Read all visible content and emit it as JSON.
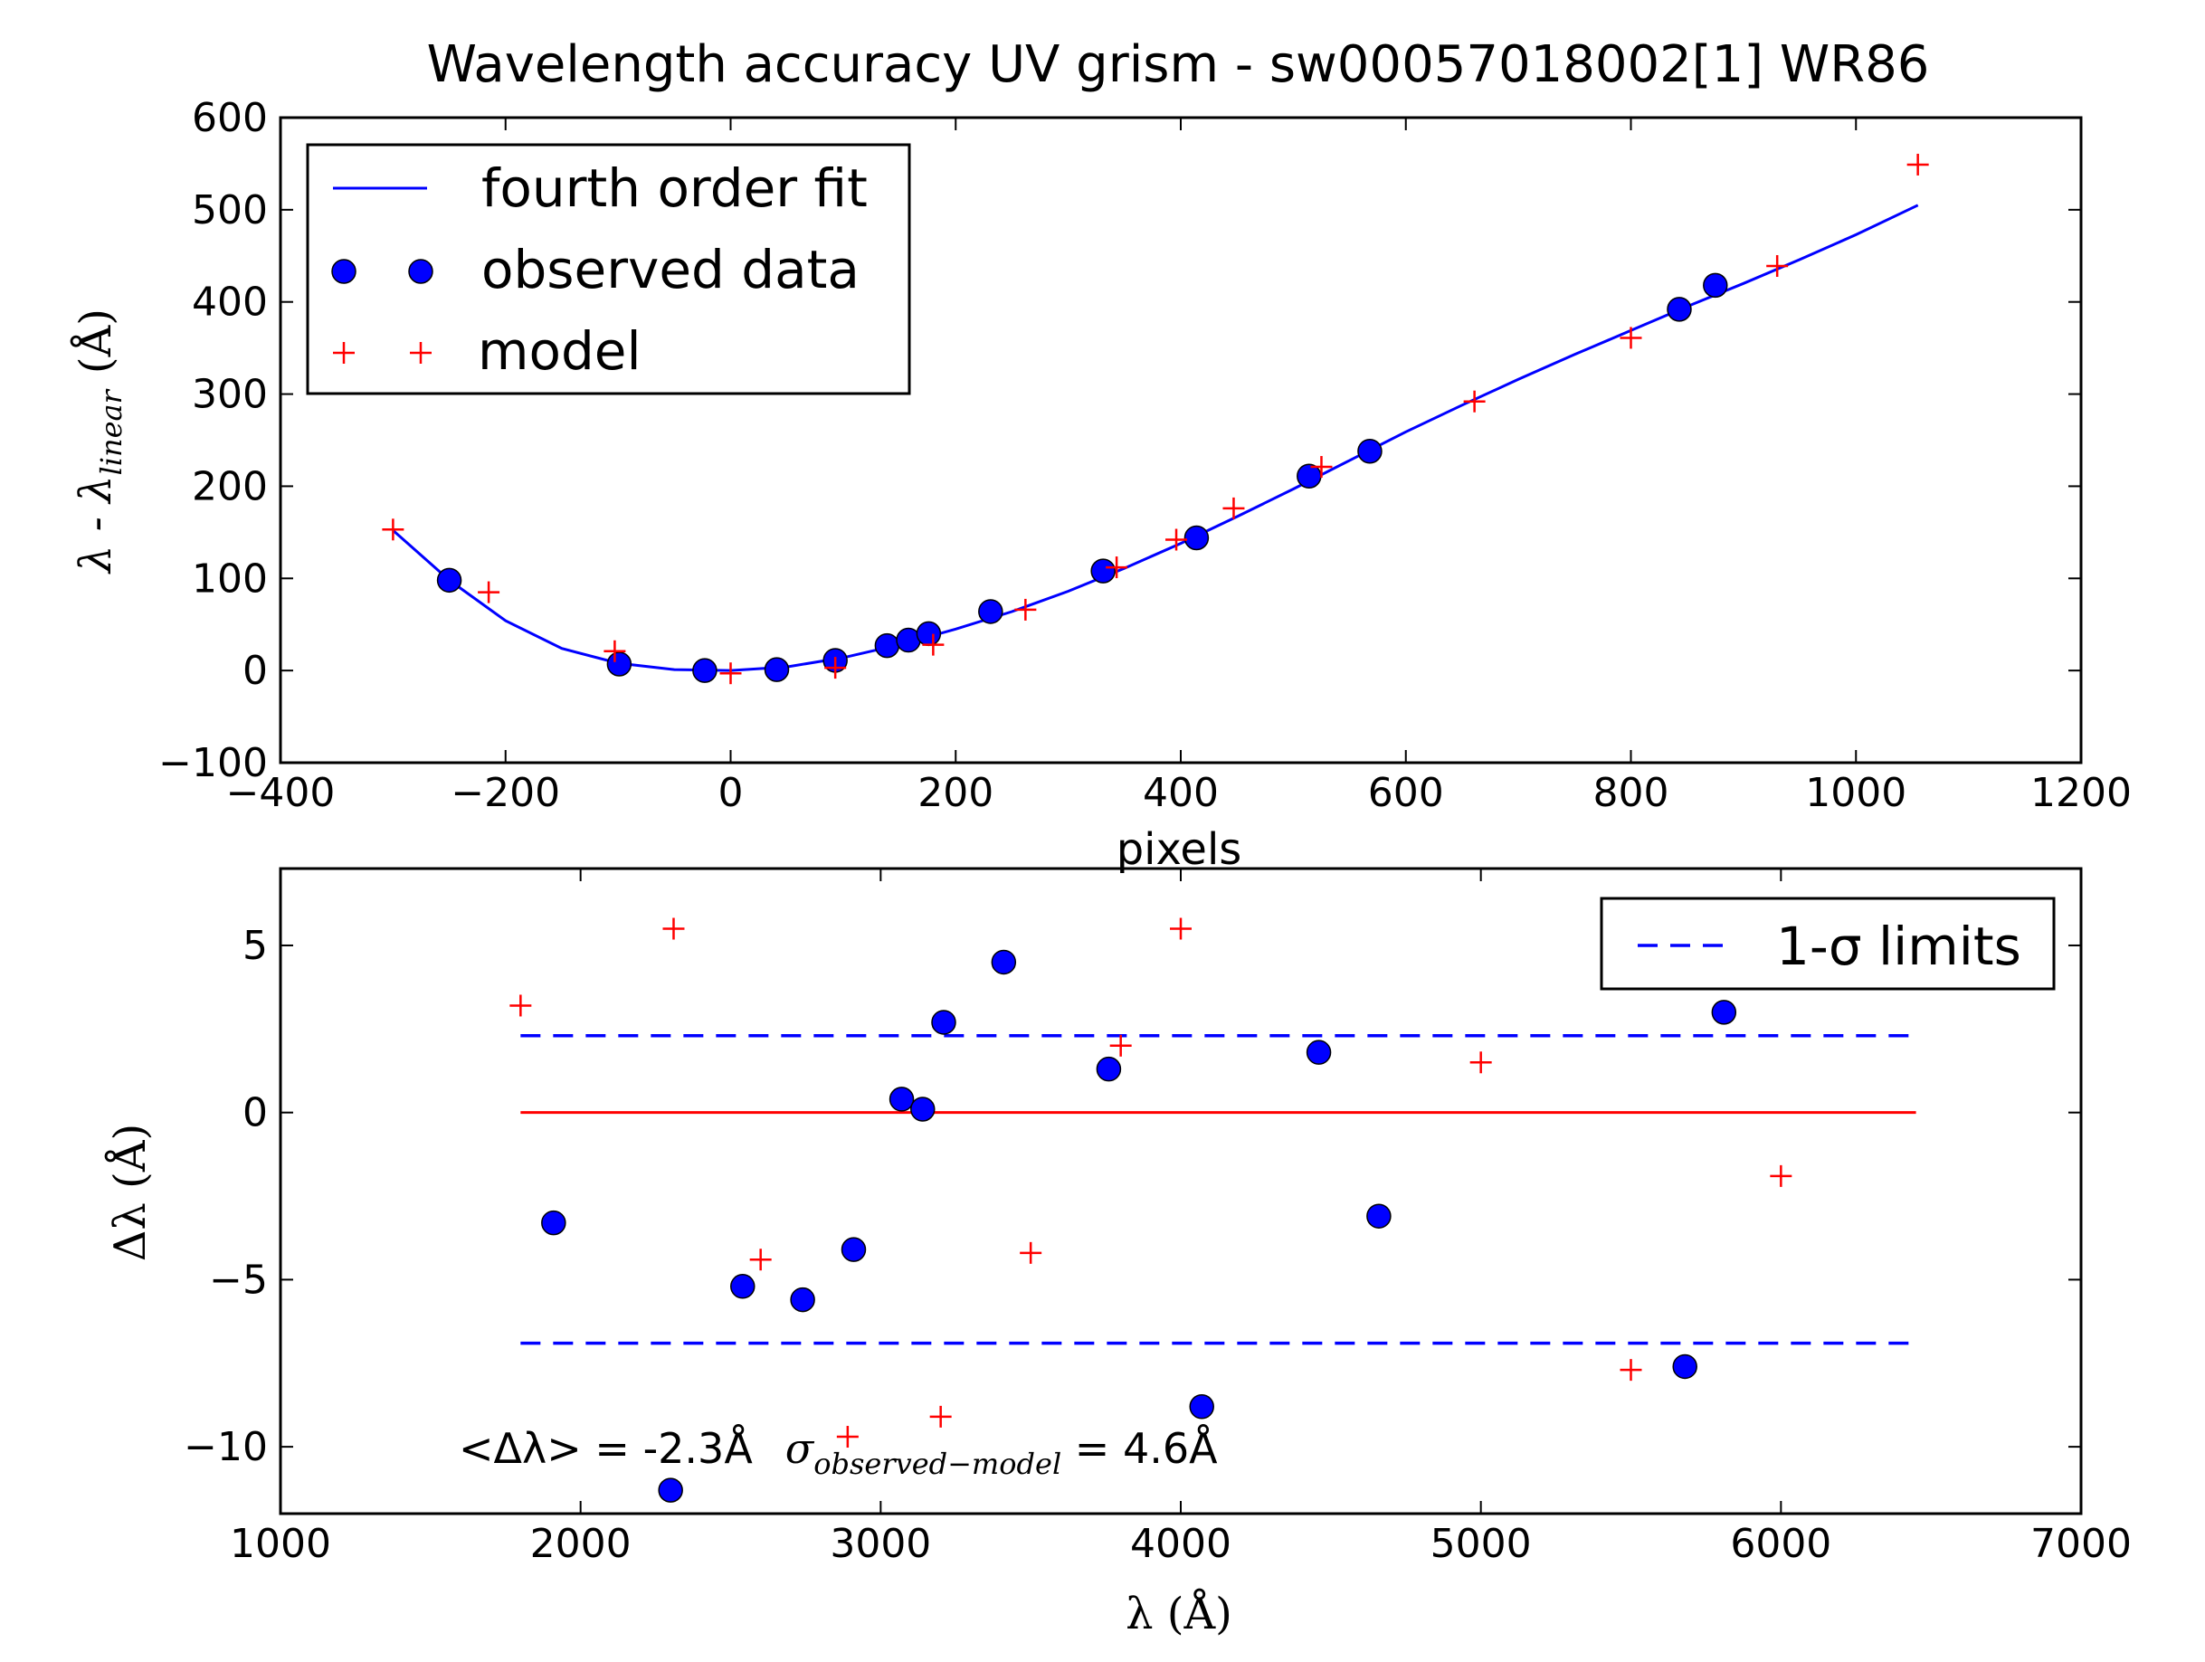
{
  "chart_data": [
    {
      "type": "scatter",
      "title": "Wavelength accuracy UV grism - sw00057018002[1] WR86",
      "xlabel": "pixels",
      "ylabel": "λ - λlinear (Å)",
      "ylabel_parts": {
        "main": "λ - λ",
        "sub": "linear",
        "unit": "(Å)"
      },
      "xlim": [
        -400,
        1200
      ],
      "ylim": [
        -100,
        600
      ],
      "xticks": [
        -400,
        -200,
        0,
        200,
        400,
        600,
        800,
        1000,
        1200
      ],
      "yticks": [
        -100,
        0,
        100,
        200,
        300,
        400,
        500,
        600
      ],
      "xtick_labels": [
        "−400",
        "−200",
        "0",
        "200",
        "400",
        "600",
        "800",
        "1000",
        "1200"
      ],
      "ytick_labels": [
        "−100",
        "0",
        "100",
        "200",
        "300",
        "400",
        "500",
        "600"
      ],
      "legend_position": "upper-left",
      "series": [
        {
          "name": "fourth order fit",
          "kind": "line",
          "color": "#0000ff",
          "x": [
            -300,
            -250,
            -200,
            -150,
            -100,
            -50,
            0,
            50,
            100,
            150,
            200,
            250,
            300,
            350,
            400,
            450,
            500,
            550,
            600,
            650,
            700,
            750,
            800,
            850,
            900,
            950,
            1000,
            1055
          ],
          "y": [
            152,
            98,
            54,
            24,
            8,
            1,
            0,
            4,
            14,
            28,
            45,
            64,
            86,
            111,
            138,
            167,
            197,
            228,
            259,
            288,
            316,
            343,
            369,
            395,
            420,
            446,
            473,
            505
          ]
        },
        {
          "name": "observed data",
          "kind": "marker-circle",
          "color": "#0000ff",
          "x": [
            -250,
            -99,
            -23,
            41,
            93,
            139,
            158,
            176,
            231,
            331,
            414,
            514,
            568,
            843,
            875
          ],
          "y": [
            98,
            7,
            0,
            1,
            11,
            27,
            33,
            40,
            64,
            108,
            144,
            211,
            238,
            392,
            418
          ]
        },
        {
          "name": "model",
          "kind": "marker-plus",
          "color": "#ff0000",
          "x": [
            -300,
            -215,
            -103,
            0,
            93,
            180,
            262,
            343,
            396,
            447,
            525,
            661,
            800,
            930,
            1055
          ],
          "y": [
            153,
            85,
            21,
            -3,
            3,
            28,
            66,
            112,
            142,
            176,
            221,
            292,
            361,
            439,
            549
          ]
        }
      ]
    },
    {
      "type": "scatter",
      "xlabel": "λ (Å)",
      "ylabel": "Δλ (Å)",
      "xlim": [
        1000,
        7000
      ],
      "ylim": [
        -12,
        7.3
      ],
      "xticks": [
        1000,
        2000,
        3000,
        4000,
        5000,
        6000,
        7000
      ],
      "yticks": [
        -10,
        -5,
        0,
        5
      ],
      "xtick_labels": [
        "1000",
        "2000",
        "3000",
        "4000",
        "5000",
        "6000",
        "7000"
      ],
      "ytick_labels": [
        "−10",
        "−5",
        "0",
        "5"
      ],
      "legend_position": "upper-right",
      "annotation": {
        "mean_text": "<Δλ> = -2.3Å",
        "sigma_symbol": "σ",
        "sigma_sub": "observed−model",
        "sigma_value": " = 4.6Å"
      },
      "series": [
        {
          "name": "1-σ limits",
          "kind": "dashed-line",
          "color": "#0000ff",
          "x": [
            1800,
            6450
          ],
          "upper": 2.3,
          "lower": -6.9
        },
        {
          "kind": "zero-line",
          "color": "#ff0000",
          "x": [
            1800,
            6450
          ],
          "y": 0
        },
        {
          "kind": "marker-circle",
          "color": "#0000ff",
          "x": [
            1910,
            2300,
            2540,
            2740,
            2910,
            3070,
            3140,
            3210,
            3410,
            3760,
            4070,
            4460,
            4660,
            5680,
            5810
          ],
          "y": [
            -3.3,
            -11.3,
            -5.2,
            -5.6,
            -4.1,
            0.4,
            0.1,
            2.7,
            4.5,
            1.3,
            -8.8,
            1.8,
            -3.1,
            -7.6,
            3.0
          ]
        },
        {
          "kind": "marker-plus",
          "color": "#ff0000",
          "x": [
            1800,
            2310,
            2600,
            2890,
            3200,
            3500,
            3800,
            4000,
            5000,
            5500,
            6000
          ],
          "y": [
            3.2,
            5.5,
            -4.4,
            -9.7,
            -9.1,
            -4.2,
            2.0,
            5.5,
            1.5,
            -7.7,
            -1.9
          ]
        }
      ]
    }
  ]
}
